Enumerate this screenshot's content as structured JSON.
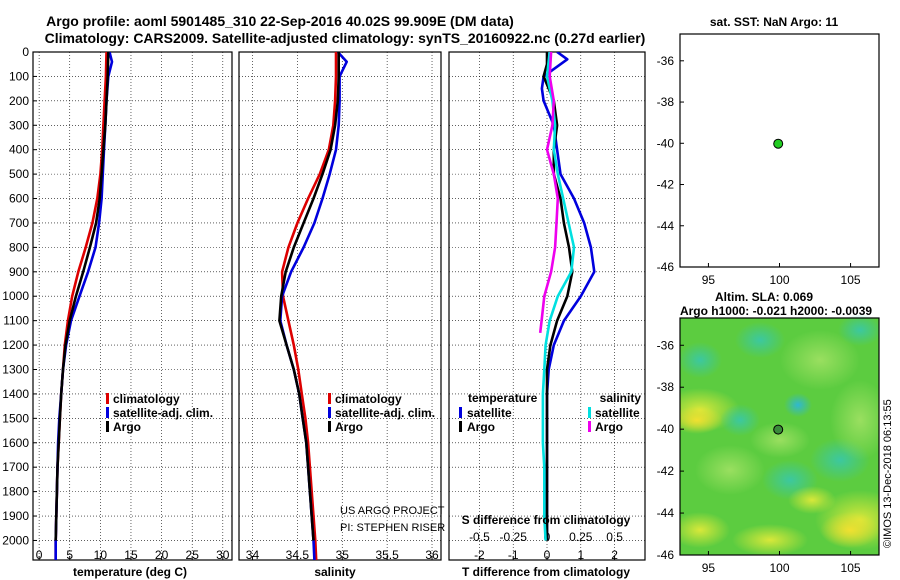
{
  "header": {
    "title_line1": "Argo profile: aoml 5901485_310 22-Sep-2016 40.02S 99.909E (DM data)",
    "title_line2": "Climatology: CARS2009. Satellite-adjusted climatology: synTS_20160922.nc (0.27d earlier)"
  },
  "colors": {
    "climatology": "#dd0000",
    "satellite_adj": "#0000dd",
    "argo": "#000000",
    "sal_satellite": "#00e0e0",
    "sal_argo": "#ee00ee",
    "sst_dot": "#22cc22"
  },
  "credits": {
    "project": "US ARGO PROJECT",
    "pi": "PI: STEPHEN RISER",
    "imos": "©IMOS 13-Dec-2018 06:13:55"
  },
  "legends": {
    "profile": {
      "climatology": "climatology",
      "satellite": "satellite-adj. clim.",
      "argo": "Argo"
    },
    "diff": {
      "temperature_heading": "temperature",
      "salinity_heading": "salinity",
      "satellite": "satellite",
      "argo": "Argo"
    }
  },
  "maps": {
    "sst_title": "sat. SST: NaN Argo: 11",
    "altim_title": "Altim. SLA: 0.069",
    "altim_subtitle": "Argo h1000: -0.021 h2000: -0.0039"
  },
  "chart_data": [
    {
      "type": "line",
      "id": "temperature",
      "xlabel": "temperature (deg C)",
      "ylabel": "",
      "xlim": [
        -1,
        31.5
      ],
      "ylim": [
        2080,
        0
      ],
      "xticks": [
        0,
        5,
        10,
        15,
        20,
        25,
        30
      ],
      "yticks": [
        0,
        100,
        200,
        300,
        400,
        500,
        600,
        700,
        800,
        900,
        1000,
        1100,
        1200,
        1300,
        1400,
        1500,
        1600,
        1700,
        1800,
        1900,
        2000
      ],
      "grid": true,
      "series": [
        {
          "name": "climatology",
          "depth": [
            0,
            100,
            200,
            300,
            400,
            500,
            600,
            700,
            800,
            900,
            1000,
            1100,
            1200,
            1300,
            1400,
            1500,
            1600,
            1700,
            1800,
            1900,
            2000,
            2080
          ],
          "values": [
            11.0,
            10.9,
            10.7,
            10.5,
            10.3,
            10.0,
            9.5,
            8.7,
            7.6,
            6.4,
            5.4,
            4.7,
            4.2,
            3.9,
            3.6,
            3.4,
            3.2,
            3.0,
            2.9,
            2.8,
            2.7,
            2.7
          ]
        },
        {
          "name": "satellite-adj. clim.",
          "depth": [
            0,
            40,
            100,
            200,
            300,
            400,
            500,
            600,
            700,
            800,
            900,
            1000,
            1100,
            1200,
            1300,
            1400,
            1500,
            1600,
            1700,
            1800,
            1900,
            2000,
            2080
          ],
          "values": [
            11.5,
            11.9,
            11.3,
            11.0,
            10.8,
            10.6,
            10.4,
            10.2,
            9.8,
            9.2,
            8.0,
            6.6,
            5.2,
            4.4,
            3.9,
            3.6,
            3.3,
            3.1,
            3.0,
            2.9,
            2.8,
            2.7,
            2.7
          ]
        },
        {
          "name": "Argo",
          "depth": [
            0,
            100,
            200,
            300,
            400,
            500,
            600,
            700,
            800,
            900,
            1000,
            1100,
            1200,
            1300,
            1400,
            1500,
            1600,
            1700,
            1800,
            1900,
            2000
          ],
          "values": [
            11.3,
            11.2,
            11.0,
            10.8,
            10.5,
            10.2,
            9.9,
            9.3,
            8.3,
            7.2,
            6.0,
            5.0,
            4.3,
            3.9,
            3.6,
            3.4,
            3.2,
            3.0,
            2.9,
            2.8,
            2.7
          ]
        }
      ],
      "legend": "bottom-right"
    },
    {
      "type": "line",
      "id": "salinity",
      "xlabel": "salinity",
      "ylabel": "",
      "xlim": [
        33.85,
        36.1
      ],
      "ylim": [
        2080,
        0
      ],
      "xticks": [
        34,
        34.5,
        35,
        35.5,
        36
      ],
      "grid": true,
      "series": [
        {
          "name": "climatology",
          "depth": [
            0,
            100,
            200,
            300,
            400,
            500,
            600,
            700,
            800,
            900,
            1000,
            1100,
            1200,
            1300,
            1400,
            1500,
            1600,
            1700,
            1800,
            1900,
            2000,
            2080
          ],
          "values": [
            34.93,
            34.93,
            34.92,
            34.9,
            34.85,
            34.75,
            34.62,
            34.5,
            34.4,
            34.33,
            34.34,
            34.4,
            34.46,
            34.51,
            34.55,
            34.59,
            34.62,
            34.64,
            34.66,
            34.68,
            34.7,
            34.71
          ]
        },
        {
          "name": "satellite-adj. clim.",
          "depth": [
            0,
            40,
            100,
            200,
            300,
            400,
            500,
            600,
            700,
            800,
            900,
            1000,
            1100,
            1200,
            1300,
            1400,
            1500,
            1600,
            1700,
            1800,
            1900,
            2000,
            2080
          ],
          "values": [
            34.95,
            35.05,
            34.97,
            34.97,
            34.96,
            34.93,
            34.86,
            34.78,
            34.69,
            34.57,
            34.43,
            34.33,
            34.31,
            34.38,
            34.46,
            34.52,
            34.56,
            34.6,
            34.62,
            34.64,
            34.66,
            34.68,
            34.69
          ]
        },
        {
          "name": "Argo",
          "depth": [
            0,
            100,
            200,
            300,
            400,
            500,
            600,
            700,
            800,
            900,
            1000,
            1100,
            1200,
            1300,
            1400,
            1500,
            1600,
            1700,
            1800,
            1900,
            2000
          ],
          "values": [
            34.96,
            34.96,
            34.95,
            34.92,
            34.87,
            34.78,
            34.68,
            34.57,
            34.46,
            34.37,
            34.32,
            34.3,
            34.38,
            34.46,
            34.52,
            34.56,
            34.6,
            34.62,
            34.64,
            34.66,
            34.68
          ]
        }
      ],
      "legend": "bottom-right"
    },
    {
      "type": "line",
      "id": "difference",
      "xlabel": "T difference from climatology",
      "xlabel_top": "S difference from climatology",
      "xlim": [
        -2.9,
        2.9
      ],
      "ylim": [
        2080,
        0
      ],
      "xticks": [
        -2,
        -1,
        0,
        1,
        2
      ],
      "xticks_secondary": [
        -0.5,
        -0.25,
        0,
        0.25,
        0.5
      ],
      "grid": true,
      "series": [
        {
          "name": "temperature satellite",
          "depth": [
            0,
            30,
            60,
            100,
            150,
            200,
            300,
            400,
            500,
            600,
            700,
            800,
            900,
            1000,
            1100,
            1200,
            1300,
            1400,
            1500,
            1600,
            1700,
            1800,
            1900,
            2000
          ],
          "values": [
            0.3,
            0.6,
            0.3,
            -0.1,
            -0.15,
            -0.1,
            0.2,
            0.3,
            0.4,
            0.8,
            1.1,
            1.3,
            1.4,
            1.0,
            0.5,
            0.2,
            0.05,
            0.0,
            0.0,
            0.0,
            0.0,
            0.0,
            0.0,
            0.0
          ]
        },
        {
          "name": "temperature Argo",
          "depth": [
            0,
            50,
            100,
            200,
            300,
            400,
            500,
            600,
            700,
            800,
            900,
            1000,
            1100,
            1200,
            1300,
            1400,
            1500,
            1600,
            1700,
            1800,
            1900,
            2000
          ],
          "values": [
            0.0,
            0.0,
            -0.1,
            0.2,
            0.3,
            0.2,
            0.2,
            0.4,
            0.5,
            0.65,
            0.75,
            0.6,
            0.3,
            0.1,
            0.0,
            0.0,
            0.0,
            0.0,
            0.0,
            0.0,
            0.0,
            0.0
          ]
        },
        {
          "name": "salinity satellite",
          "depth": [
            0,
            100,
            200,
            300,
            400,
            500,
            600,
            700,
            800,
            900,
            1000,
            1100,
            1200,
            1300,
            1400,
            1500,
            1600,
            1700,
            1800,
            1900,
            2000
          ],
          "values": [
            0.02,
            0.0,
            0.04,
            0.06,
            0.05,
            0.08,
            0.12,
            0.16,
            0.2,
            0.18,
            0.08,
            0.02,
            -0.01,
            -0.02,
            -0.03,
            -0.03,
            -0.03,
            -0.02,
            -0.02,
            -0.02,
            -0.01
          ]
        },
        {
          "name": "salinity Argo",
          "depth": [
            0,
            100,
            200,
            300,
            400,
            500,
            600,
            700,
            800,
            900,
            1000,
            1100,
            1150
          ],
          "values": [
            0.03,
            0.02,
            0.05,
            0.04,
            0.0,
            0.05,
            0.08,
            0.07,
            0.06,
            0.03,
            -0.02,
            -0.04,
            -0.05
          ]
        }
      ],
      "legend": "bottom"
    },
    {
      "type": "scatter",
      "id": "sst-map",
      "title": "sat. SST: NaN Argo: 11",
      "xlim": [
        93,
        107
      ],
      "ylim": [
        -46,
        -34.7
      ],
      "xticks": [
        95,
        100,
        105
      ],
      "yticks": [
        -36,
        -38,
        -40,
        -42,
        -44,
        -46
      ],
      "points": [
        {
          "x": 99.909,
          "y": -40.02
        }
      ]
    },
    {
      "type": "heatmap",
      "id": "sla-map",
      "title": "Altim. SLA: 0.069",
      "xlim": [
        93,
        107
      ],
      "ylim": [
        -46,
        -34.7
      ],
      "xticks": [
        95,
        100,
        105
      ],
      "yticks": [
        -36,
        -38,
        -40,
        -42,
        -44,
        -46
      ],
      "points": [
        {
          "x": 99.909,
          "y": -40.02
        }
      ]
    }
  ]
}
